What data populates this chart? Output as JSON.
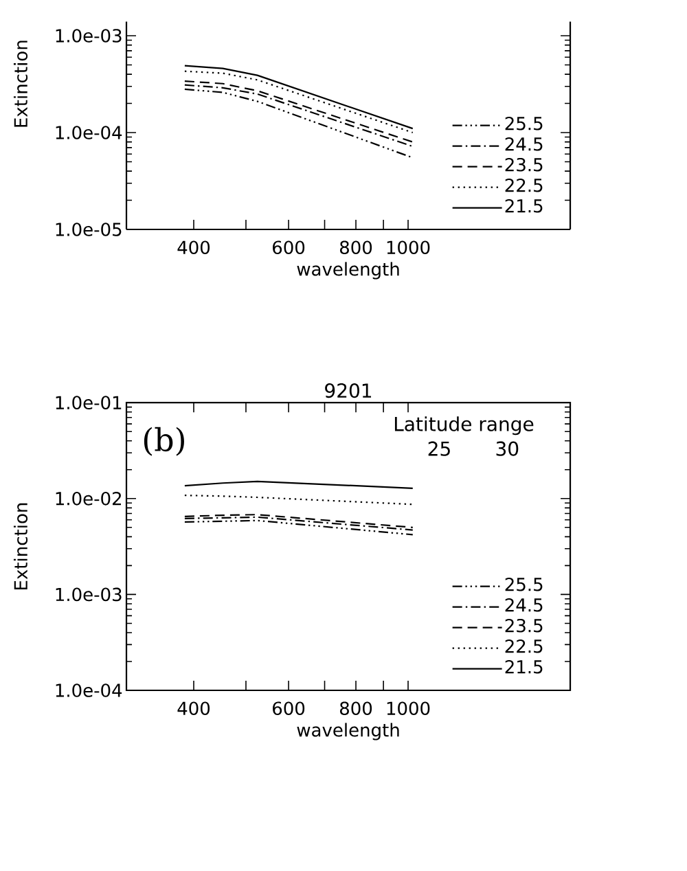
{
  "chart_data": [
    {
      "type": "line",
      "xlabel": "wavelength",
      "ylabel": "Extinction",
      "x": [
        385,
        453,
        525,
        1020
      ],
      "log": "xy",
      "legend": "bottom right",
      "xlim": [
        300,
        2000
      ],
      "xticks": [
        400,
        {
          "value": 500,
          "label": null
        },
        600,
        {
          "value": 700,
          "label": null
        },
        800,
        {
          "value": 900,
          "label": null
        },
        1000
      ],
      "ylim": [
        1e-05,
        0.0014
      ],
      "yticks": [
        {
          "value": 1e-05,
          "label": "1.0e-05"
        },
        {
          "value": 0.0001,
          "label": "1.0e-04"
        },
        {
          "value": 0.001,
          "label": "1.0e-03"
        }
      ],
      "series": [
        {
          "name": "25.5",
          "color": "#000000",
          "line_style": "dashdotdot",
          "values": [
            0.00028,
            0.00026,
            0.00021,
            5.5e-05
          ]
        },
        {
          "name": "24.5",
          "color": "#000000",
          "line_style": "dashdot",
          "values": [
            0.00031,
            0.00029,
            0.00025,
            7.2e-05
          ]
        },
        {
          "name": "23.5",
          "color": "#000000",
          "line_style": "dashed",
          "values": [
            0.00034,
            0.00032,
            0.00027,
            8e-05
          ]
        },
        {
          "name": "22.5",
          "color": "#000000",
          "line_style": "dotted",
          "values": [
            0.00043,
            0.00041,
            0.00035,
            0.0001
          ]
        },
        {
          "name": "21.5",
          "color": "#000000",
          "line_style": "solid",
          "values": [
            0.00049,
            0.00046,
            0.00039,
            0.00011
          ]
        }
      ]
    },
    {
      "type": "line",
      "title": "9201",
      "xlabel": "wavelength",
      "ylabel": "Extinction",
      "annotations": [
        "(b)",
        "Latitude range",
        "25",
        "30"
      ],
      "x": [
        385,
        453,
        525,
        1020
      ],
      "log": "xy",
      "legend": "bottom right",
      "xlim": [
        300,
        2000
      ],
      "xticks": [
        400,
        {
          "value": 500,
          "label": null
        },
        600,
        {
          "value": 700,
          "label": null
        },
        800,
        {
          "value": 900,
          "label": null
        },
        1000
      ],
      "ylim": [
        0.0001,
        0.1
      ],
      "yticks": [
        {
          "value": 0.0001,
          "label": "1.0e-04"
        },
        {
          "value": 0.001,
          "label": "1.0e-03"
        },
        {
          "value": 0.01,
          "label": "1.0e-02"
        },
        {
          "value": 0.1,
          "label": "1.0e-01"
        }
      ],
      "series": [
        {
          "name": "25.5",
          "color": "#000000",
          "line_style": "dashdotdot",
          "values": [
            0.0057,
            0.0058,
            0.0059,
            0.0042
          ]
        },
        {
          "name": "24.5",
          "color": "#000000",
          "line_style": "dashdot",
          "values": [
            0.0062,
            0.0063,
            0.0064,
            0.0047
          ]
        },
        {
          "name": "23.5",
          "color": "#000000",
          "line_style": "dashed",
          "values": [
            0.0065,
            0.0067,
            0.0068,
            0.005
          ]
        },
        {
          "name": "22.5",
          "color": "#000000",
          "line_style": "dotted",
          "values": [
            0.0108,
            0.0106,
            0.0103,
            0.0087
          ]
        },
        {
          "name": "21.5",
          "color": "#000000",
          "line_style": "solid",
          "values": [
            0.0136,
            0.0145,
            0.0151,
            0.0128
          ]
        }
      ]
    }
  ]
}
